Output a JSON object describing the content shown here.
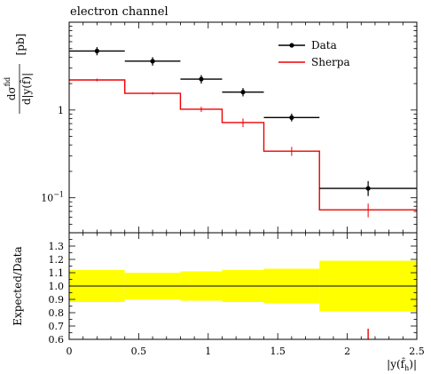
{
  "chart_data": [
    {
      "type": "line",
      "title": "electron channel",
      "ylabel": "dσ^fid / d|y(f̂)| [pb]",
      "ylabel_num": "dσ",
      "ylabel_sup": "fid",
      "ylabel_den": "d|y(f̂)|",
      "ylabel_unit": "[pb]",
      "xlim": [
        0,
        2.5
      ],
      "ylim": [
        0.04,
        10
      ],
      "yscale": "log",
      "ytick_labels": [
        {
          "value": 1,
          "label": "1"
        },
        {
          "value": 0.1,
          "label": "10",
          "sup": "−1"
        }
      ],
      "legend_position": "top-right",
      "bins": [
        [
          0,
          0.4
        ],
        [
          0.4,
          0.8
        ],
        [
          0.8,
          1.1
        ],
        [
          1.1,
          1.4
        ],
        [
          1.4,
          1.8
        ],
        [
          1.8,
          2.5
        ]
      ],
      "series": [
        {
          "name": "Data",
          "color": "#000000",
          "style": "points-with-errors",
          "x": [
            0.2,
            0.6,
            0.95,
            1.25,
            1.6,
            2.15
          ],
          "values": [
            4.7,
            3.6,
            2.25,
            1.6,
            0.82,
            0.128
          ],
          "err_low": [
            4.2,
            3.2,
            2.0,
            1.43,
            0.74,
            0.105
          ],
          "err_high": [
            5.2,
            4.0,
            2.5,
            1.78,
            0.91,
            0.155
          ]
        },
        {
          "name": "Sherpa",
          "color": "#ee0000",
          "style": "histogram",
          "x": [
            0.2,
            0.6,
            0.95,
            1.25,
            1.6,
            2.15
          ],
          "values": [
            2.2,
            1.55,
            1.02,
            0.72,
            0.34,
            0.073
          ],
          "err_low": [
            2.12,
            1.5,
            0.95,
            0.64,
            0.3,
            0.06
          ],
          "err_high": [
            2.28,
            1.6,
            1.09,
            0.8,
            0.38,
            0.086
          ]
        }
      ]
    },
    {
      "type": "area",
      "xlabel": "|y(f̂_h)|",
      "xlabel_main": "|y(f̂",
      "xlabel_sub": "h",
      "xlabel_close": ")|",
      "ylabel": "Expected/Data",
      "xlim": [
        0,
        2.5
      ],
      "ylim": [
        0.6,
        1.4
      ],
      "x_ticks": [
        0,
        0.5,
        1,
        1.5,
        2,
        2.5
      ],
      "x_tick_labels": [
        "0",
        "0.5",
        "1",
        "1.5",
        "2",
        "2.5"
      ],
      "y_ticks": [
        0.6,
        0.7,
        0.8,
        0.9,
        1.0,
        1.1,
        1.2,
        1.3
      ],
      "y_tick_labels": [
        "0.6",
        "0.7",
        "0.8",
        "0.9",
        "1.0",
        "1.1",
        "1.2",
        "1.3"
      ],
      "reference_line": 1.0,
      "band_color": "#ffff00",
      "band": [
        {
          "x0": 0,
          "x1": 0.4,
          "low": 0.88,
          "high": 1.12
        },
        {
          "x0": 0.4,
          "x1": 0.8,
          "low": 0.9,
          "high": 1.1
        },
        {
          "x0": 0.8,
          "x1": 1.1,
          "low": 0.89,
          "high": 1.11
        },
        {
          "x0": 1.1,
          "x1": 1.4,
          "low": 0.88,
          "high": 1.12
        },
        {
          "x0": 1.4,
          "x1": 1.8,
          "low": 0.87,
          "high": 1.13
        },
        {
          "x0": 1.8,
          "x1": 2.5,
          "low": 0.81,
          "high": 1.19
        }
      ],
      "series": [
        {
          "name": "Sherpa",
          "color": "#ee0000",
          "x": [
            2.15
          ],
          "values": [
            0.6
          ],
          "err_low": [
            0.55
          ],
          "err_high": [
            0.68
          ]
        }
      ]
    }
  ]
}
